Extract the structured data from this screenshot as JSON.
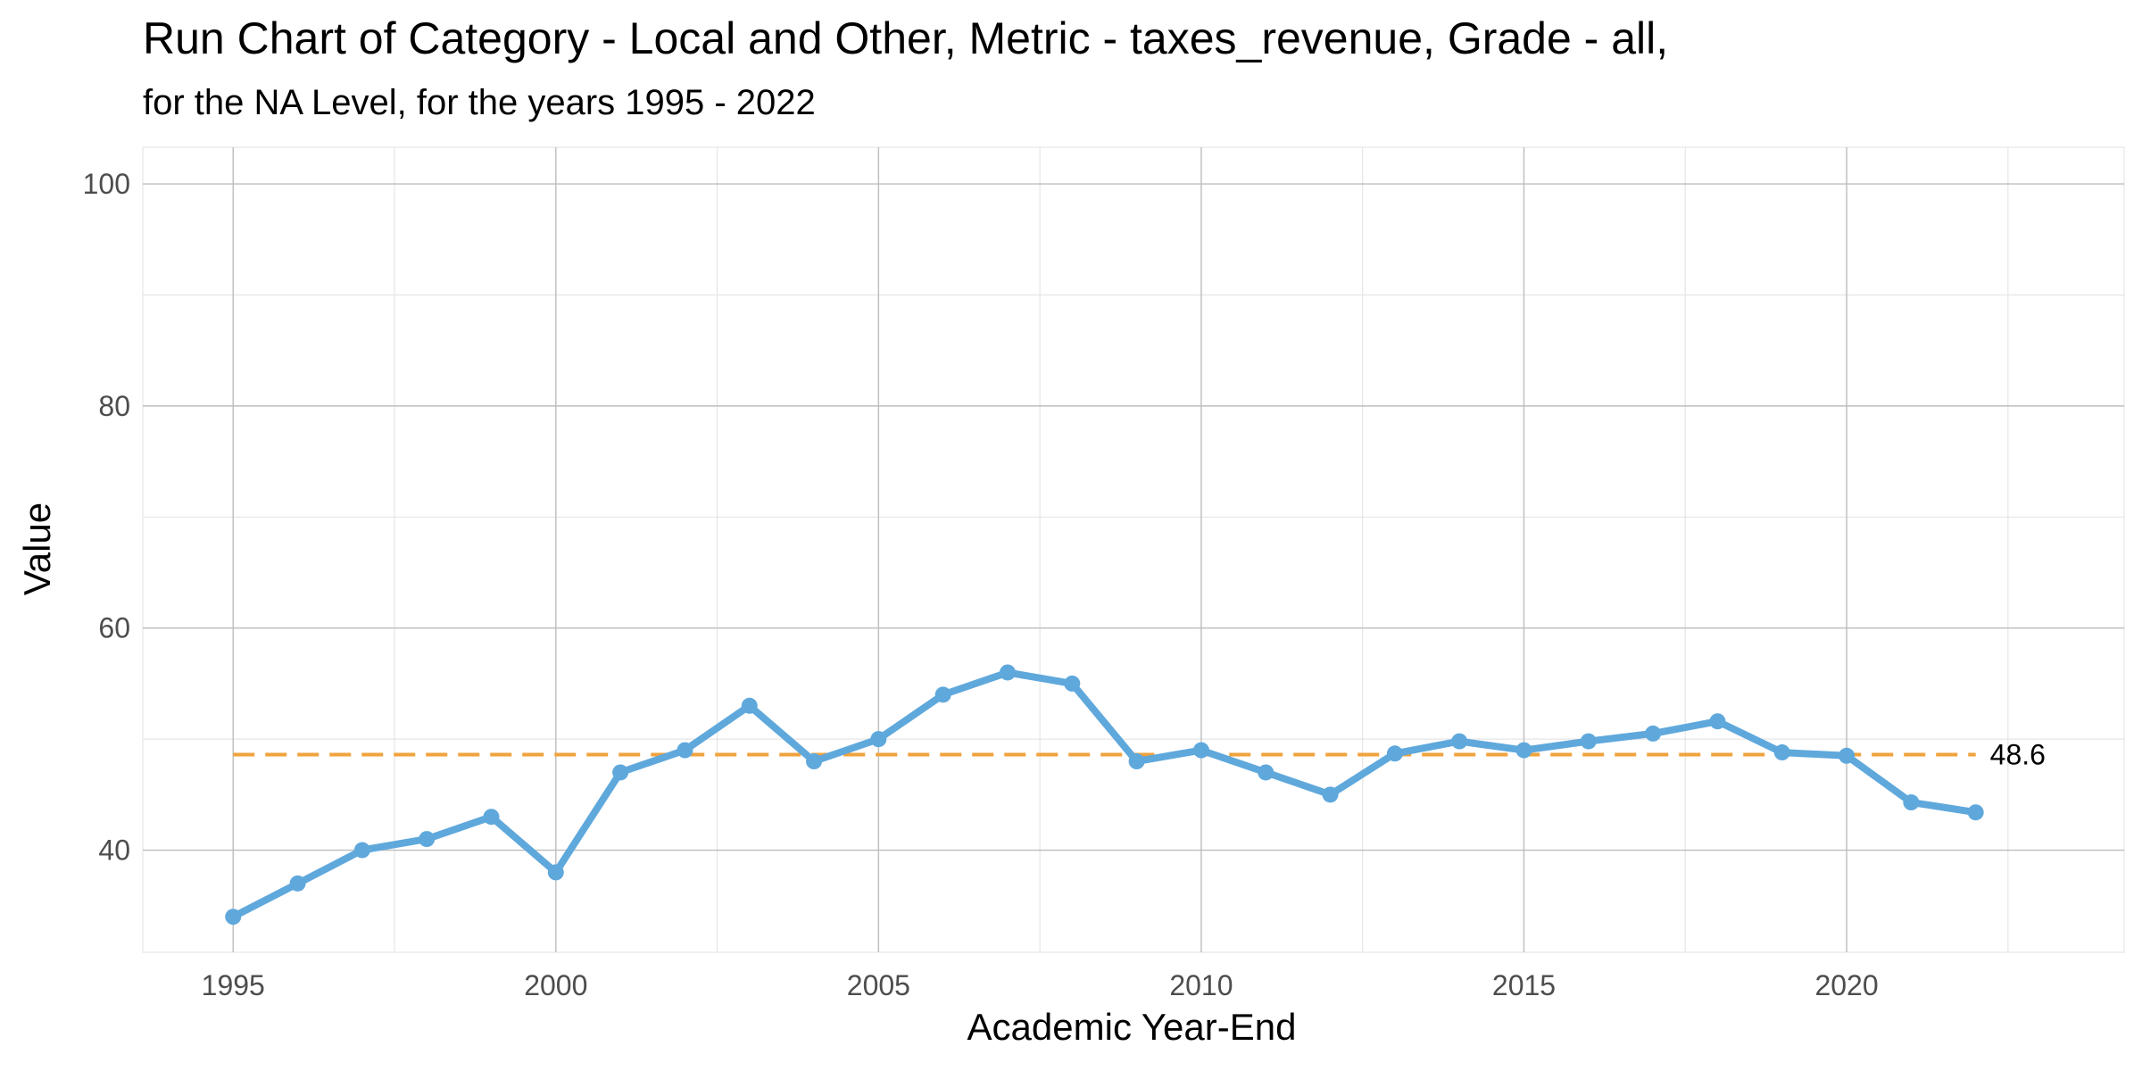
{
  "chart_data": {
    "type": "line",
    "title": "Run Chart of Category -  Local and Other, Metric - taxes_revenue, Grade - all,",
    "subtitle": "for the NA Level, for the years 1995 - 2022",
    "xlabel": "Academic Year-End",
    "ylabel": "Value",
    "xlim": [
      1993.6,
      2024.3
    ],
    "ylim": [
      30.8,
      103.3
    ],
    "x_ticks": [
      1995,
      2000,
      2005,
      2010,
      2015,
      2020
    ],
    "y_ticks": [
      40,
      60,
      80,
      100
    ],
    "grid": true,
    "x": [
      1995,
      1996,
      1997,
      1998,
      1999,
      2000,
      2001,
      2002,
      2003,
      2004,
      2005,
      2006,
      2007,
      2008,
      2009,
      2010,
      2011,
      2012,
      2013,
      2014,
      2015,
      2016,
      2017,
      2018,
      2019,
      2020,
      2021,
      2022
    ],
    "series": [
      {
        "values": [
          34,
          37,
          40,
          41,
          43,
          38,
          47,
          49,
          53,
          48,
          50,
          54,
          56,
          55,
          48,
          49,
          47,
          45,
          48.7,
          49.8,
          49,
          49.8,
          50.5,
          51.6,
          48.8,
          48.5,
          44.3,
          43.4
        ],
        "color": "#5fa8dc"
      }
    ],
    "reference_line": {
      "value": 48.6,
      "label": "48.6",
      "x_range": [
        1995,
        2022
      ],
      "style": "dashed",
      "color": "#f0a23c"
    }
  }
}
